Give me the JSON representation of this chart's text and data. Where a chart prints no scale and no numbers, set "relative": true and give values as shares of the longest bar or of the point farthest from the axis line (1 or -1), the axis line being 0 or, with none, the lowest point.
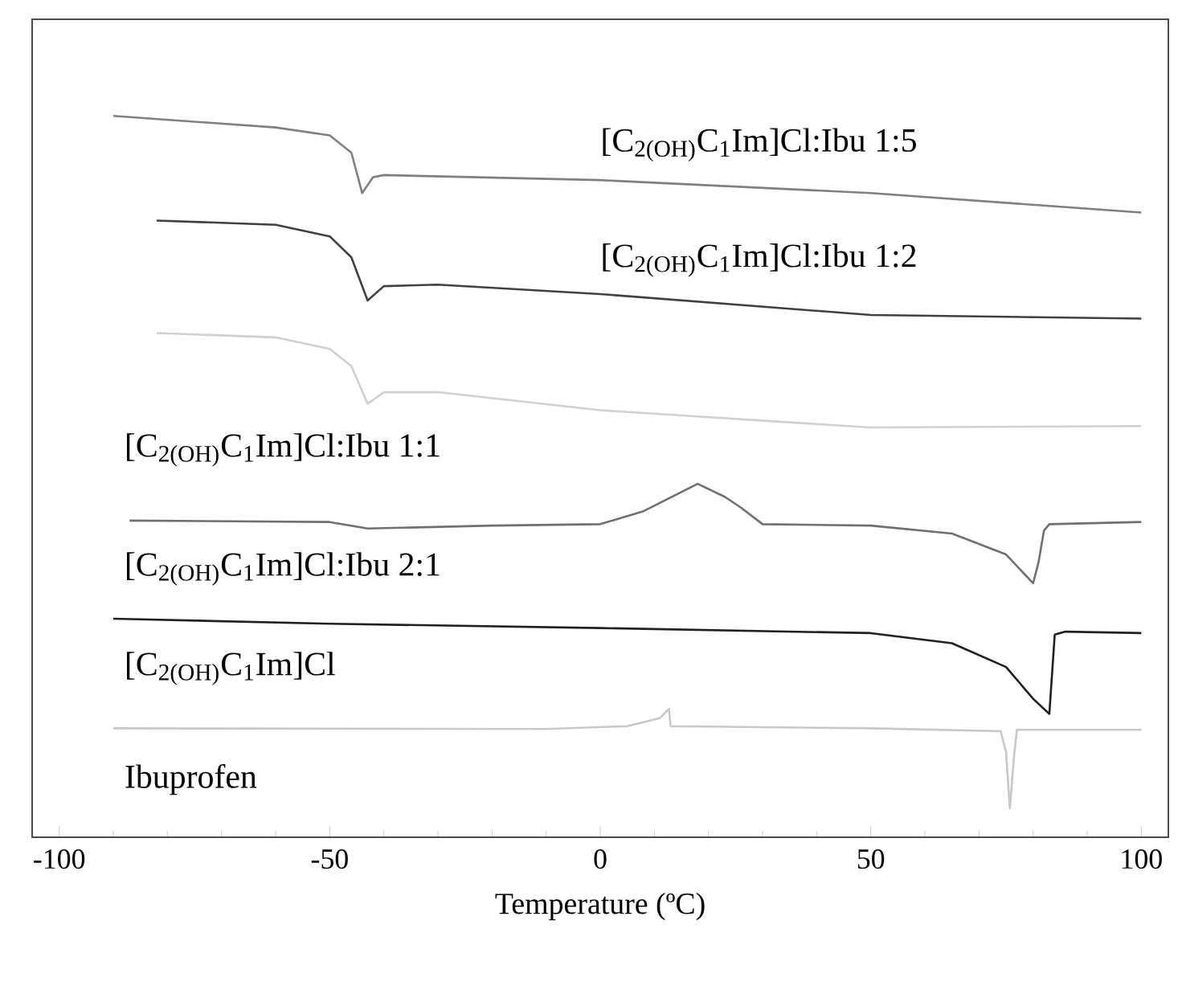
{
  "chart_data": {
    "type": "line",
    "relative": true,
    "xlabel": "Temperature (ºC)",
    "xlim": [
      -105,
      105
    ],
    "xticks": [
      -100,
      -50,
      0,
      50,
      100
    ],
    "series": [
      {
        "name": "[C$_{2(OH)}$C$_{1}$Im]Cl:Ibu 1:5",
        "color": "#808080",
        "x": [
          -90,
          -60,
          -50,
          -46,
          -44,
          -42,
          -40,
          0,
          50,
          100
        ],
        "values": [
          1.0,
          0.984,
          0.973,
          0.949,
          0.893,
          0.915,
          0.918,
          0.911,
          0.893,
          0.866
        ]
      },
      {
        "name": "[C$_{2(OH)}$C$_{1}$Im]Cl:Ibu 1:2",
        "color": "#404040",
        "x": [
          -82,
          -60,
          -50,
          -46,
          -43,
          -40,
          -30,
          0,
          50,
          100
        ],
        "values": [
          0.855,
          0.849,
          0.833,
          0.804,
          0.744,
          0.764,
          0.766,
          0.753,
          0.724,
          0.719
        ]
      },
      {
        "name": "[C$_{2(OH)}$C$_{1}$Im]Cl:Ibu 1:1",
        "color": "#d0d0d0",
        "x": [
          -82,
          -60,
          -50,
          -46,
          -43,
          -40,
          -30,
          0,
          50,
          100
        ],
        "values": [
          0.699,
          0.693,
          0.677,
          0.653,
          0.601,
          0.617,
          0.617,
          0.592,
          0.568,
          0.57
        ]
      },
      {
        "name": "[C$_{2(OH)}$C$_{1}$Im]Cl:Ibu 2:1",
        "color": "#707070",
        "x": [
          -87,
          -50,
          -43,
          -20,
          0,
          8,
          18,
          23,
          26,
          30,
          50,
          65,
          75,
          80,
          81,
          82,
          83,
          100
        ],
        "values": [
          0.439,
          0.437,
          0.428,
          0.432,
          0.434,
          0.452,
          0.49,
          0.472,
          0.457,
          0.434,
          0.432,
          0.421,
          0.392,
          0.352,
          0.381,
          0.425,
          0.434,
          0.437
        ]
      },
      {
        "name": "[C$_{2(OH)}$C$_{1}$Im]Cl",
        "color": "#202020",
        "x": [
          -90,
          -50,
          0,
          50,
          65,
          75,
          80,
          83,
          84,
          86,
          100
        ],
        "values": [
          0.303,
          0.296,
          0.29,
          0.283,
          0.269,
          0.236,
          0.192,
          0.171,
          0.281,
          0.285,
          0.283
        ]
      },
      {
        "name": "Ibuprofen",
        "color": "#c8c8c8",
        "x": [
          -90,
          -10,
          5,
          11,
          12.7,
          13,
          50,
          74,
          75,
          75.7,
          76.5,
          77,
          100
        ],
        "values": [
          0.151,
          0.15,
          0.154,
          0.165,
          0.178,
          0.154,
          0.151,
          0.147,
          0.118,
          0.04,
          0.114,
          0.149,
          0.149
        ]
      }
    ]
  }
}
